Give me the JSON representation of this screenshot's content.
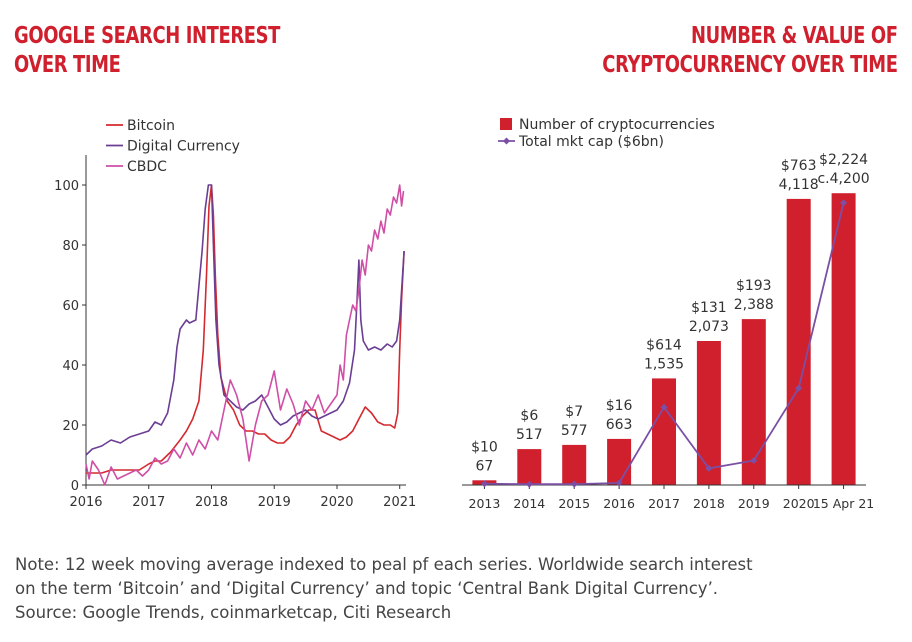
{
  "titles": {
    "left": [
      "Google search interest",
      "over time"
    ],
    "right": [
      "Number & value of",
      "cryptocurrency over time"
    ]
  },
  "colors": {
    "title": "#d0202e",
    "bitcoin": "#d42a2f",
    "digital_currency": "#6b3e94",
    "cbdc": "#cf4fa6",
    "bars": "#d0202e",
    "mktcap": "#7b4fa3"
  },
  "note": {
    "lines": [
      "Note: 12 week moving average indexed to peal pf each series. Worldwide search interest",
      "on the term ‘Bitcoin’ and ‘Digital Currency’ and topic ‘Central Bank Digital Currency’.",
      "Source: Google Trends, coinmarketcap, Citi Research"
    ]
  },
  "chart_data": [
    {
      "type": "line",
      "legend": [
        "Bitcoin",
        "Digital Currency",
        "CBDC"
      ],
      "legend_position": "top-left",
      "xticks": [
        "2016",
        "2017",
        "2018",
        "2019",
        "2020",
        "2021"
      ],
      "yticks": [
        "0",
        "20",
        "40",
        "60",
        "80",
        "100"
      ],
      "xlim": [
        2016,
        2021.1
      ],
      "ylim": [
        0,
        110
      ],
      "grid": false,
      "series": [
        {
          "name": "Bitcoin",
          "x": [
            2016,
            2016.1,
            2016.25,
            2016.4,
            2016.55,
            2016.7,
            2016.85,
            2017,
            2017.1,
            2017.2,
            2017.35,
            2017.5,
            2017.6,
            2017.7,
            2017.8,
            2017.87,
            2017.92,
            2017.96,
            2018,
            2018.03,
            2018.06,
            2018.1,
            2018.15,
            2018.25,
            2018.35,
            2018.45,
            2018.55,
            2018.65,
            2018.75,
            2018.85,
            2018.95,
            2019.05,
            2019.15,
            2019.25,
            2019.35,
            2019.45,
            2019.55,
            2019.65,
            2019.75,
            2019.85,
            2019.95,
            2020.05,
            2020.15,
            2020.25,
            2020.35,
            2020.45,
            2020.55,
            2020.65,
            2020.75,
            2020.85,
            2020.92,
            2020.97,
            2021,
            2021.03,
            2021.07
          ],
          "values": [
            4,
            4,
            4,
            5,
            5,
            5,
            5,
            7,
            8,
            8,
            11,
            15,
            18,
            22,
            28,
            45,
            70,
            93,
            100,
            90,
            70,
            50,
            36,
            28,
            25,
            20,
            18,
            18,
            17,
            17,
            15,
            14,
            14,
            16,
            20,
            23,
            25,
            25,
            18,
            17,
            16,
            15,
            16,
            18,
            22,
            26,
            24,
            21,
            20,
            20,
            19,
            24,
            45,
            62,
            78
          ]
        },
        {
          "name": "Digital Currency",
          "x": [
            2016,
            2016.1,
            2016.25,
            2016.4,
            2016.55,
            2016.7,
            2016.85,
            2017,
            2017.1,
            2017.2,
            2017.3,
            2017.4,
            2017.45,
            2017.5,
            2017.6,
            2017.65,
            2017.75,
            2017.85,
            2017.9,
            2017.95,
            2018,
            2018.03,
            2018.07,
            2018.12,
            2018.2,
            2018.3,
            2018.4,
            2018.5,
            2018.6,
            2018.7,
            2018.8,
            2018.9,
            2019,
            2019.1,
            2019.2,
            2019.3,
            2019.4,
            2019.5,
            2019.6,
            2019.7,
            2019.8,
            2019.9,
            2020,
            2020.1,
            2020.2,
            2020.28,
            2020.32,
            2020.35,
            2020.38,
            2020.42,
            2020.5,
            2020.6,
            2020.7,
            2020.8,
            2020.88,
            2020.95,
            2021,
            2021.04,
            2021.07
          ],
          "values": [
            10,
            12,
            13,
            15,
            14,
            16,
            17,
            18,
            21,
            20,
            24,
            35,
            46,
            52,
            55,
            54,
            55,
            78,
            92,
            100,
            100,
            80,
            55,
            40,
            30,
            28,
            26,
            25,
            27,
            28,
            30,
            26,
            22,
            20,
            21,
            23,
            24,
            25,
            23,
            22,
            23,
            24,
            25,
            28,
            34,
            45,
            62,
            75,
            55,
            48,
            45,
            46,
            45,
            47,
            46,
            48,
            55,
            68,
            78
          ]
        },
        {
          "name": "CBDC",
          "x": [
            2016,
            2016.05,
            2016.1,
            2016.2,
            2016.3,
            2016.4,
            2016.5,
            2016.6,
            2016.7,
            2016.8,
            2016.9,
            2017,
            2017.1,
            2017.2,
            2017.3,
            2017.4,
            2017.5,
            2017.6,
            2017.7,
            2017.8,
            2017.9,
            2018,
            2018.1,
            2018.2,
            2018.3,
            2018.4,
            2018.5,
            2018.6,
            2018.7,
            2018.8,
            2018.9,
            2019,
            2019.1,
            2019.2,
            2019.3,
            2019.4,
            2019.5,
            2019.6,
            2019.7,
            2019.8,
            2019.9,
            2020,
            2020.05,
            2020.1,
            2020.15,
            2020.2,
            2020.25,
            2020.3,
            2020.35,
            2020.4,
            2020.45,
            2020.5,
            2020.55,
            2020.6,
            2020.65,
            2020.7,
            2020.75,
            2020.8,
            2020.85,
            2020.9,
            2020.95,
            2021,
            2021.03,
            2021.06
          ],
          "values": [
            7,
            2,
            8,
            5,
            0,
            6,
            2,
            3,
            4,
            5,
            3,
            5,
            9,
            7,
            8,
            12,
            9,
            14,
            10,
            15,
            12,
            18,
            15,
            25,
            35,
            30,
            22,
            8,
            20,
            28,
            30,
            38,
            25,
            32,
            27,
            20,
            28,
            25,
            30,
            24,
            27,
            30,
            40,
            35,
            50,
            55,
            60,
            58,
            65,
            75,
            70,
            80,
            78,
            85,
            82,
            88,
            84,
            92,
            90,
            96,
            94,
            100,
            93,
            98
          ]
        }
      ]
    },
    {
      "type": "bar",
      "legend": [
        "Number of cryptocurrencies",
        "Total mkt cap ($6bn)"
      ],
      "legend_position": "top-left",
      "grid": false,
      "categories": [
        "2013",
        "2014",
        "2015",
        "2016",
        "2017",
        "2018",
        "2019",
        "2020",
        "15 Apr 21"
      ],
      "bar_values": [
        67,
        517,
        577,
        663,
        1535,
        2073,
        2388,
        4118,
        4200
      ],
      "bar_labels": [
        "67",
        "517",
        "577",
        "663",
        "1,535",
        "2,073",
        "2,388",
        "4,118",
        "c.4,200"
      ],
      "line_values": [
        10,
        6,
        7,
        16,
        614,
        131,
        193,
        763,
        2224
      ],
      "line_labels": [
        "$10",
        "$6",
        "$7",
        "$16",
        "$614",
        "$131",
        "$193",
        "$763",
        "$2,224"
      ],
      "bar_ylim": [
        0,
        4750
      ],
      "line_ylim": [
        0,
        2600
      ]
    }
  ]
}
